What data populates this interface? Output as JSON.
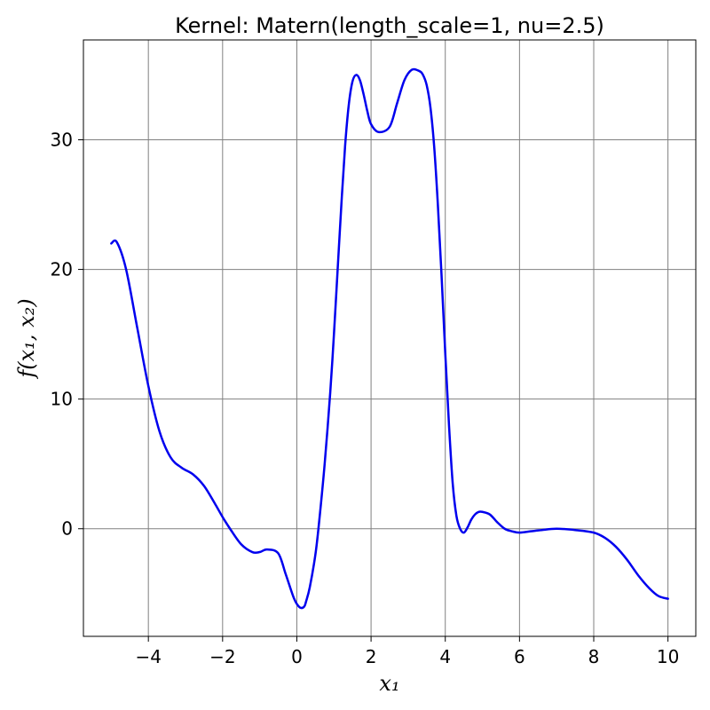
{
  "chart_data": {
    "type": "line",
    "title": "Kernel: Matern(length_scale=1, nu=2.5)",
    "xlabel": "x₁",
    "ylabel": "f(x₁, x₂)",
    "xlim": [
      -5.75,
      10.75
    ],
    "ylim": [
      -8.3,
      37.7
    ],
    "xticks": [
      -4,
      -2,
      0,
      2,
      4,
      6,
      8,
      10
    ],
    "xtick_labels": [
      "−4",
      "−2",
      "0",
      "2",
      "4",
      "6",
      "8",
      "10"
    ],
    "yticks": [
      0,
      10,
      20,
      30
    ],
    "ytick_labels": [
      "0",
      "10",
      "20",
      "30"
    ],
    "grid": true,
    "series": [
      {
        "color": "#0000ee",
        "x": [
          -5.0,
          -4.85,
          -4.6,
          -4.3,
          -4.0,
          -3.7,
          -3.4,
          -3.1,
          -2.8,
          -2.5,
          -2.2,
          -2.0,
          -1.8,
          -1.5,
          -1.2,
          -1.0,
          -0.8,
          -0.5,
          -0.3,
          -0.1,
          0.0,
          0.1,
          0.2,
          0.25,
          0.35,
          0.5,
          0.6,
          0.75,
          0.9,
          1.0,
          1.1,
          1.2,
          1.3,
          1.4,
          1.5,
          1.6,
          1.7,
          1.8,
          1.9,
          2.0,
          2.2,
          2.5,
          2.7,
          2.9,
          3.1,
          3.3,
          3.4,
          3.5,
          3.6,
          3.7,
          3.8,
          3.9,
          4.0,
          4.1,
          4.2,
          4.3,
          4.4,
          4.5,
          4.6,
          4.7,
          4.8,
          4.9,
          5.0,
          5.2,
          5.4,
          5.6,
          5.8,
          6.0,
          6.3,
          6.6,
          7.0,
          7.5,
          8.0,
          8.3,
          8.6,
          8.9,
          9.2,
          9.5,
          9.75,
          10.0
        ],
        "y": [
          22.0,
          22.1,
          20.0,
          15.5,
          11.0,
          7.5,
          5.5,
          4.7,
          4.2,
          3.3,
          1.9,
          0.9,
          0.0,
          -1.2,
          -1.8,
          -1.8,
          -1.6,
          -1.9,
          -3.5,
          -5.2,
          -5.8,
          -6.1,
          -6.0,
          -5.6,
          -4.5,
          -2.0,
          0.5,
          5.0,
          10.5,
          15.0,
          20.0,
          25.0,
          29.5,
          32.7,
          34.5,
          35.0,
          34.6,
          33.5,
          32.2,
          31.2,
          30.6,
          31.0,
          32.8,
          34.6,
          35.4,
          35.3,
          35.0,
          34.2,
          32.5,
          29.5,
          25.0,
          19.5,
          13.5,
          8.0,
          3.5,
          1.0,
          0.0,
          -0.3,
          0.1,
          0.7,
          1.1,
          1.3,
          1.3,
          1.1,
          0.5,
          0.0,
          -0.2,
          -0.3,
          -0.2,
          -0.1,
          0.0,
          -0.1,
          -0.3,
          -0.7,
          -1.4,
          -2.4,
          -3.6,
          -4.6,
          -5.2,
          -5.4
        ]
      }
    ]
  }
}
